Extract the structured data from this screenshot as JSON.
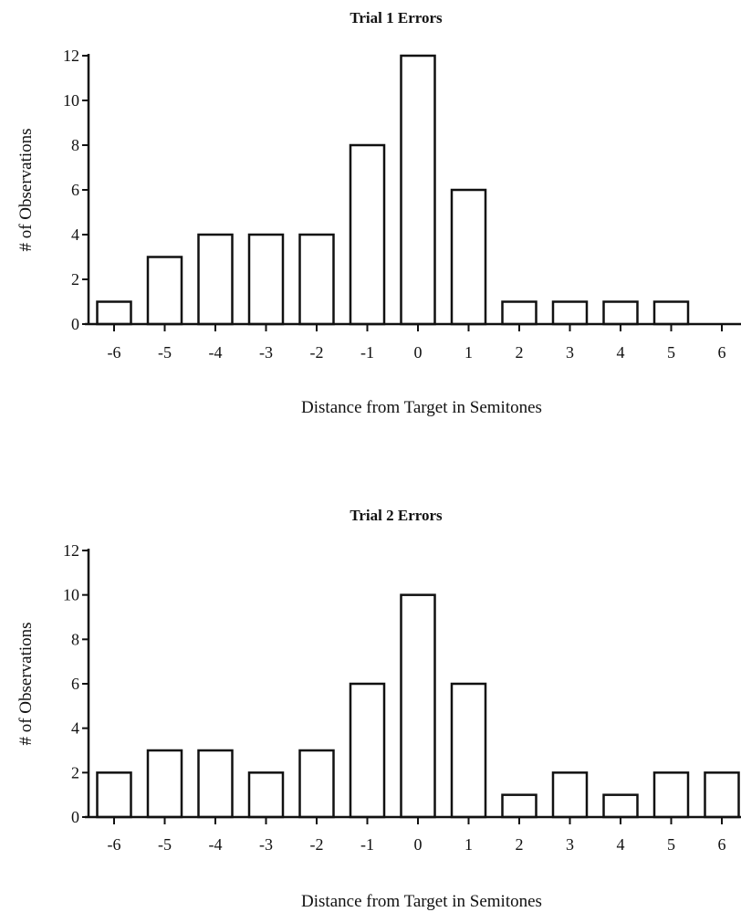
{
  "chart_data": [
    {
      "type": "bar",
      "title": "Trial 1 Errors",
      "xlabel": "Distance from Target in Semitones",
      "ylabel": "# of Observations",
      "categories": [
        "-6",
        "-5",
        "-4",
        "-3",
        "-2",
        "-1",
        "0",
        "1",
        "2",
        "3",
        "4",
        "5",
        "6"
      ],
      "values": [
        1,
        3,
        4,
        4,
        4,
        8,
        12,
        6,
        1,
        1,
        1,
        1,
        0
      ],
      "yticks": [
        0,
        2,
        4,
        6,
        8,
        10,
        12
      ],
      "ylim": [
        0,
        12
      ],
      "grid": false,
      "bar_fill": "#ffffff",
      "bar_stroke": "#111111"
    },
    {
      "type": "bar",
      "title": "Trial 2 Errors",
      "xlabel": "Distance from Target in Semitones",
      "ylabel": "# of Observations",
      "categories": [
        "-6",
        "-5",
        "-4",
        "-3",
        "-2",
        "-1",
        "0",
        "1",
        "2",
        "3",
        "4",
        "5",
        "6"
      ],
      "values": [
        2,
        3,
        3,
        2,
        3,
        6,
        10,
        6,
        1,
        2,
        1,
        2,
        2
      ],
      "yticks": [
        0,
        2,
        4,
        6,
        8,
        10,
        12
      ],
      "ylim": [
        0,
        12
      ],
      "grid": false,
      "bar_fill": "#ffffff",
      "bar_stroke": "#111111"
    }
  ]
}
